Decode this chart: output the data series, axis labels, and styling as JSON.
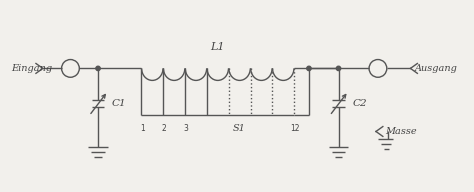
{
  "bg_color": "#f2f0ec",
  "line_color": "#555555",
  "text_color": "#444444",
  "fig_width": 4.74,
  "fig_height": 1.92,
  "dpi": 100,
  "labels": {
    "eingang": "Eingang",
    "ausgang": "Ausgang",
    "L1": "L1",
    "C1": "C1",
    "C2": "C2",
    "S1": "S1",
    "masse": "Masse",
    "tap1": "1",
    "tap2": "2",
    "tap3": "3",
    "tap12": "12"
  }
}
